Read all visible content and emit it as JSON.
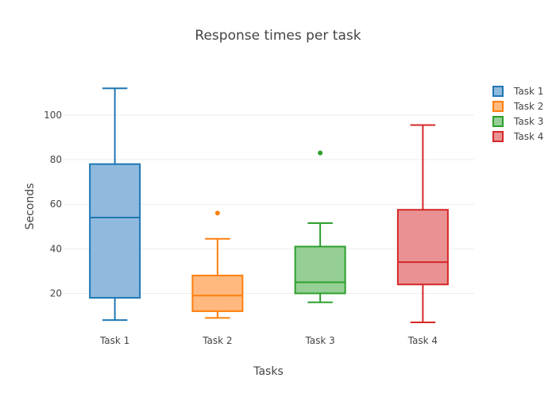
{
  "chart_data": {
    "type": "box",
    "title": "Response times per task",
    "xlabel": "Tasks",
    "ylabel": "Seconds",
    "ylim": [
      2,
      116
    ],
    "yticks": [
      20,
      40,
      60,
      80,
      100
    ],
    "grid": true,
    "legend_position": "top-right",
    "categories": [
      "Task 1",
      "Task 2",
      "Task 3",
      "Task 4"
    ],
    "series": [
      {
        "name": "Task 1",
        "color": "#1f77b4",
        "fill": "#8fbadd",
        "min": 8,
        "q1": 18,
        "median": 54,
        "q3": 78,
        "max": 112,
        "outliers": []
      },
      {
        "name": "Task 2",
        "color": "#ff7f0e",
        "fill": "#ffb97f",
        "min": 9,
        "q1": 12,
        "median": 19,
        "q3": 28,
        "max": 44.5,
        "outliers": [
          56
        ]
      },
      {
        "name": "Task 3",
        "color": "#2ca02c",
        "fill": "#95cf95",
        "min": 16,
        "q1": 20,
        "median": 25,
        "q3": 41,
        "max": 51.5,
        "outliers": [
          83
        ]
      },
      {
        "name": "Task 4",
        "color": "#d62728",
        "fill": "#ea9293",
        "min": 7,
        "q1": 24,
        "median": 34,
        "q3": 57.5,
        "max": 95.5,
        "outliers": []
      }
    ]
  }
}
